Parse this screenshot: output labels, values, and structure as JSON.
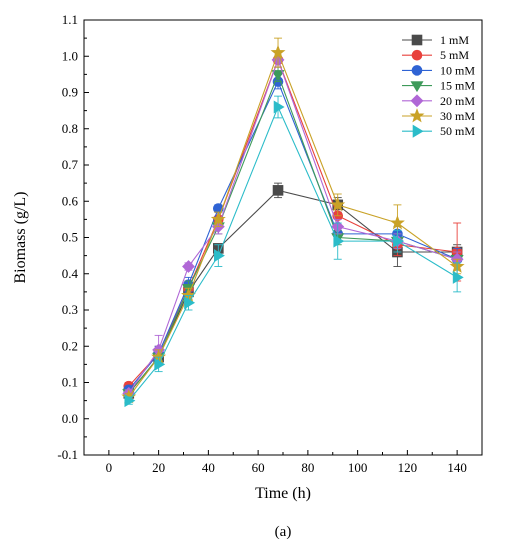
{
  "chart_data": {
    "type": "line",
    "xlabel": "Time (h)",
    "ylabel": "Biomass (g/L)",
    "caption": "(a)",
    "xlim": [
      -10,
      150
    ],
    "ylim": [
      -0.1,
      1.1
    ],
    "x_ticks": [
      "0",
      "20",
      "40",
      "60",
      "80",
      "100",
      "120",
      "140"
    ],
    "y_ticks": [
      "-0.1",
      "0.0",
      "0.1",
      "0.2",
      "0.3",
      "0.4",
      "0.5",
      "0.6",
      "0.7",
      "0.8",
      "0.9",
      "1.0",
      "1.1"
    ],
    "legend_position": "top-right",
    "x": [
      8,
      20,
      32,
      44,
      68,
      92,
      116,
      140
    ],
    "series": [
      {
        "name": "1 mM",
        "marker": "square",
        "color": "#4a4a4a",
        "values": [
          0.07,
          0.17,
          0.35,
          0.47,
          0.63,
          0.59,
          0.46,
          0.46
        ],
        "errors": [
          0.01,
          0.01,
          0.02,
          0.01,
          0.02,
          0.02,
          0.04,
          0.02
        ]
      },
      {
        "name": "5 mM",
        "marker": "circle",
        "color": "#e8413c",
        "values": [
          0.09,
          0.18,
          0.36,
          0.55,
          0.99,
          0.56,
          0.48,
          0.46
        ],
        "errors": [
          0.01,
          0.02,
          0.02,
          0.02,
          0.02,
          0.03,
          0.03,
          0.08
        ]
      },
      {
        "name": "10 mM",
        "marker": "circle",
        "color": "#2f63d4",
        "values": [
          0.08,
          0.18,
          0.37,
          0.58,
          0.93,
          0.51,
          0.51,
          0.44
        ],
        "errors": [
          0.01,
          0.02,
          0.02,
          0.01,
          0.02,
          0.02,
          0.02,
          0.03
        ]
      },
      {
        "name": "15 mM",
        "marker": "triangle-down",
        "color": "#3e9a5a",
        "values": [
          0.07,
          0.17,
          0.36,
          0.53,
          0.95,
          0.5,
          0.49,
          0.44
        ],
        "errors": [
          0.01,
          0.02,
          0.02,
          0.02,
          0.02,
          0.02,
          0.02,
          0.02
        ]
      },
      {
        "name": "20 mM",
        "marker": "diamond",
        "color": "#b067d6",
        "values": [
          0.07,
          0.19,
          0.42,
          0.53,
          0.99,
          0.53,
          0.49,
          0.44
        ],
        "errors": [
          0.01,
          0.04,
          0.01,
          0.02,
          0.02,
          0.02,
          0.02,
          0.02
        ]
      },
      {
        "name": "30 mM",
        "marker": "star",
        "color": "#c9a227",
        "values": [
          0.06,
          0.17,
          0.34,
          0.55,
          1.01,
          0.59,
          0.54,
          0.42
        ],
        "errors": [
          0.01,
          0.02,
          0.02,
          0.02,
          0.04,
          0.03,
          0.05,
          0.02
        ]
      },
      {
        "name": "50 mM",
        "marker": "triangle-right",
        "color": "#2bbcc9",
        "values": [
          0.05,
          0.15,
          0.32,
          0.45,
          0.86,
          0.49,
          0.49,
          0.39
        ],
        "errors": [
          0.01,
          0.02,
          0.02,
          0.03,
          0.03,
          0.05,
          0.03,
          0.04
        ]
      }
    ]
  }
}
